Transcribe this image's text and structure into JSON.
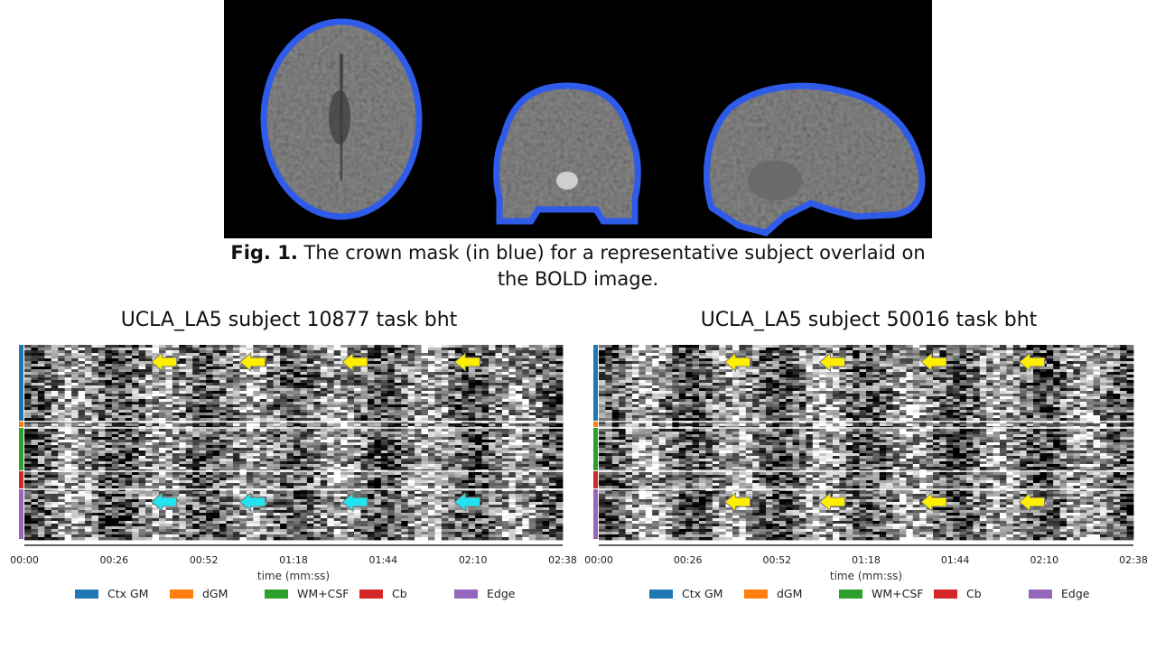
{
  "figure": {
    "caption_label": "Fig. 1.",
    "caption_text": "The crown mask (in blue) for a representative subject overlaid on the BOLD image.",
    "mask_color": "#2f5bea",
    "views": [
      "axial",
      "coronal",
      "sagittal"
    ]
  },
  "carpet_plots": [
    {
      "title": "UCLA_LA5 subject 10877 task bht",
      "xlabel": "time (mm:ss)",
      "x_ticks": [
        "00:00",
        "00:26",
        "00:52",
        "01:18",
        "01:44",
        "02:10",
        "02:38"
      ],
      "legend": [
        {
          "label": "Ctx GM",
          "color": "#1f77b4"
        },
        {
          "label": "dGM",
          "color": "#ff7f0e"
        },
        {
          "label": "WM+CSF",
          "color": "#2ca02c"
        },
        {
          "label": "Cb",
          "color": "#d62728"
        },
        {
          "label": "Edge",
          "color": "#9467bd"
        }
      ],
      "arrows": [
        {
          "time_s": 41,
          "region": "Ctx GM",
          "color": "#ffee00",
          "icon": "arrow-left-icon"
        },
        {
          "time_s": 67,
          "region": "Ctx GM",
          "color": "#ffee00",
          "icon": "arrow-left-icon"
        },
        {
          "time_s": 97,
          "region": "Ctx GM",
          "color": "#ffee00",
          "icon": "arrow-left-icon"
        },
        {
          "time_s": 130,
          "region": "Ctx GM",
          "color": "#ffee00",
          "icon": "arrow-left-icon"
        },
        {
          "time_s": 41,
          "region": "Edge",
          "color": "#22e4f0",
          "icon": "arrow-left-icon"
        },
        {
          "time_s": 67,
          "region": "Edge",
          "color": "#22e4f0",
          "icon": "arrow-left-icon"
        },
        {
          "time_s": 97,
          "region": "Edge",
          "color": "#22e4f0",
          "icon": "arrow-left-icon"
        },
        {
          "time_s": 130,
          "region": "Edge",
          "color": "#22e4f0",
          "icon": "arrow-left-icon"
        }
      ]
    },
    {
      "title": "UCLA_LA5 subject 50016 task bht",
      "xlabel": "time (mm:ss)",
      "x_ticks": [
        "00:00",
        "00:26",
        "00:52",
        "01:18",
        "01:44",
        "02:10",
        "02:38"
      ],
      "legend": [
        {
          "label": "Ctx GM",
          "color": "#1f77b4"
        },
        {
          "label": "dGM",
          "color": "#ff7f0e"
        },
        {
          "label": "WM+CSF",
          "color": "#2ca02c"
        },
        {
          "label": "Cb",
          "color": "#d62728"
        },
        {
          "label": "Edge",
          "color": "#9467bd"
        }
      ],
      "arrows": [
        {
          "time_s": 41,
          "region": "Ctx GM",
          "color": "#ffee00",
          "icon": "arrow-left-icon"
        },
        {
          "time_s": 69,
          "region": "Ctx GM",
          "color": "#ffee00",
          "icon": "arrow-left-icon"
        },
        {
          "time_s": 99,
          "region": "Ctx GM",
          "color": "#ffee00",
          "icon": "arrow-left-icon"
        },
        {
          "time_s": 128,
          "region": "Ctx GM",
          "color": "#ffee00",
          "icon": "arrow-left-icon"
        },
        {
          "time_s": 41,
          "region": "Edge",
          "color": "#ffee00",
          "icon": "arrow-left-icon"
        },
        {
          "time_s": 69,
          "region": "Edge",
          "color": "#ffee00",
          "icon": "arrow-left-icon"
        },
        {
          "time_s": 99,
          "region": "Edge",
          "color": "#ffee00",
          "icon": "arrow-left-icon"
        },
        {
          "time_s": 128,
          "region": "Edge",
          "color": "#ffee00",
          "icon": "arrow-left-icon"
        }
      ]
    }
  ]
}
